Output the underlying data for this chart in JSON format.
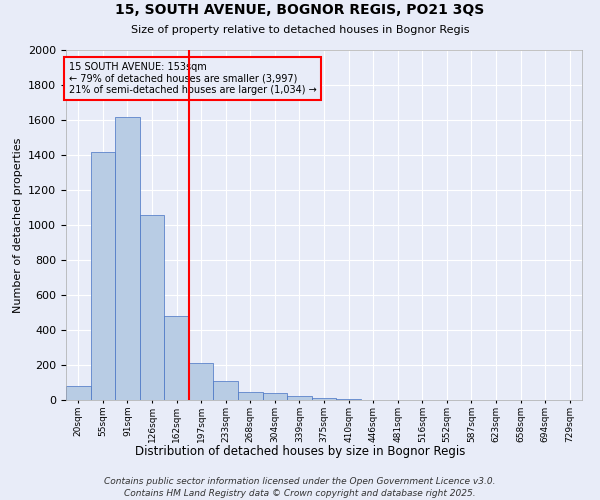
{
  "title1": "15, SOUTH AVENUE, BOGNOR REGIS, PO21 3QS",
  "title2": "Size of property relative to detached houses in Bognor Regis",
  "xlabel": "Distribution of detached houses by size in Bognor Regis",
  "ylabel": "Number of detached properties",
  "categories": [
    "20sqm",
    "55sqm",
    "91sqm",
    "126sqm",
    "162sqm",
    "197sqm",
    "233sqm",
    "268sqm",
    "304sqm",
    "339sqm",
    "375sqm",
    "410sqm",
    "446sqm",
    "481sqm",
    "516sqm",
    "552sqm",
    "587sqm",
    "623sqm",
    "658sqm",
    "694sqm",
    "729sqm"
  ],
  "values": [
    80,
    1420,
    1620,
    1060,
    480,
    210,
    110,
    45,
    40,
    25,
    12,
    8,
    0,
    0,
    0,
    0,
    0,
    0,
    0,
    0,
    0
  ],
  "bar_color": "#b8cce4",
  "bar_edge_color": "#4472c4",
  "vline_x_idx": 4,
  "vline_color": "red",
  "annotation_line1": "15 SOUTH AVENUE: 153sqm",
  "annotation_line2": "← 79% of detached houses are smaller (3,997)",
  "annotation_line3": "21% of semi-detached houses are larger (1,034) →",
  "annotation_box_color": "red",
  "ylim": [
    0,
    2000
  ],
  "yticks": [
    0,
    200,
    400,
    600,
    800,
    1000,
    1200,
    1400,
    1600,
    1800,
    2000
  ],
  "footnote1": "Contains HM Land Registry data © Crown copyright and database right 2025.",
  "footnote2": "Contains public sector information licensed under the Open Government Licence v3.0.",
  "bg_color": "#e8ecf8",
  "grid_color": "#ffffff"
}
